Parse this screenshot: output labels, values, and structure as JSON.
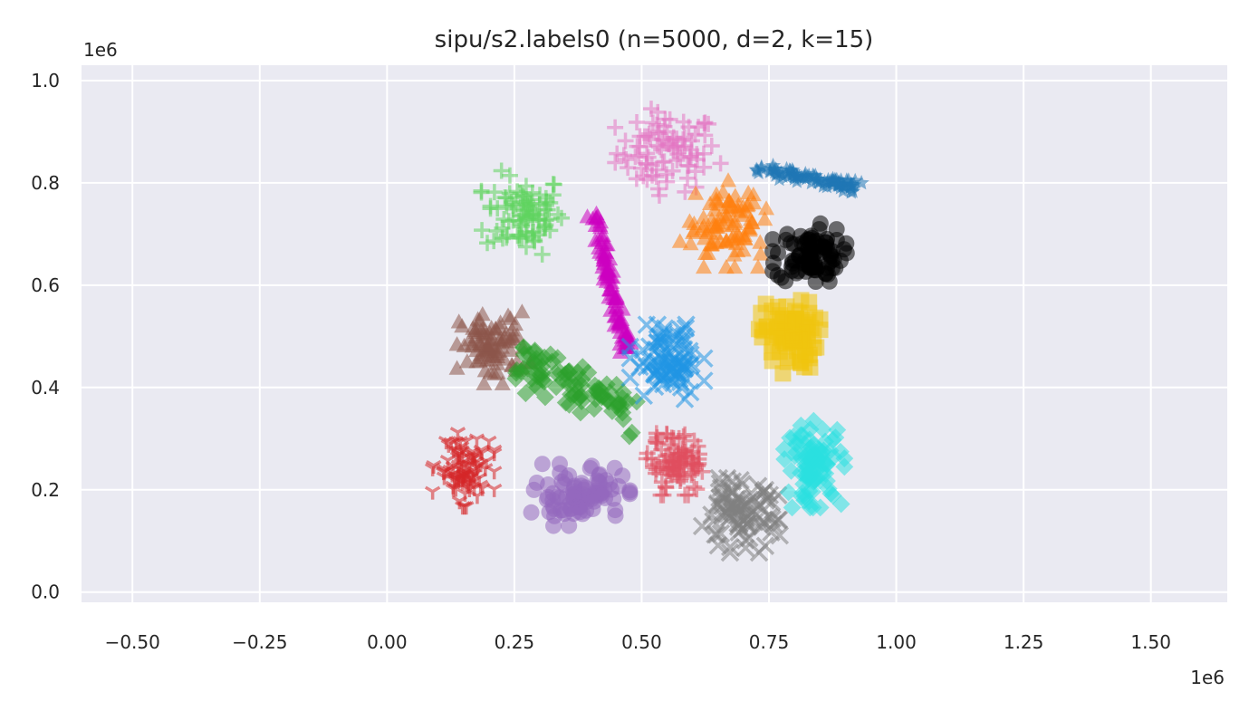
{
  "chart_data": {
    "type": "scatter",
    "title": "sipu/s2.labels0 (n=5000, d=2, k=15)",
    "xlabel": "",
    "ylabel": "",
    "x_offset_label": "1e6",
    "y_offset_label": "1e6",
    "xlim": [
      -0.6,
      1.65
    ],
    "ylim": [
      -0.02,
      1.03
    ],
    "xticks": [
      -0.5,
      -0.25,
      0.0,
      0.25,
      0.5,
      0.75,
      1.0,
      1.25,
      1.5
    ],
    "xtick_labels": [
      "−0.50",
      "−0.25",
      "0.00",
      "0.25",
      "0.50",
      "0.75",
      "1.00",
      "1.25",
      "1.50"
    ],
    "yticks": [
      0.0,
      0.2,
      0.4,
      0.6,
      0.8,
      1.0
    ],
    "ytick_labels": [
      "0.0",
      "0.2",
      "0.4",
      "0.6",
      "0.8",
      "1.0"
    ],
    "grid": true,
    "background": "#eaeaf2",
    "clusters": [
      {
        "marker": "plus",
        "color": "#e377c2",
        "center": [
          0.55,
          0.86
        ],
        "spread": [
          0.09,
          0.07
        ],
        "approx_n": 333
      },
      {
        "marker": "plus",
        "color": "#5fd35f",
        "center": [
          0.27,
          0.74
        ],
        "spread": [
          0.07,
          0.07
        ],
        "approx_n": 333
      },
      {
        "marker": "triangle",
        "color": "#cc00c0",
        "center": [
          0.44,
          0.6
        ],
        "spread": [
          0.02,
          0.1
        ],
        "approx_n": 333
      },
      {
        "marker": "triangle",
        "color": "#ff7f0e",
        "center": [
          0.66,
          0.72
        ],
        "spread": [
          0.07,
          0.07
        ],
        "approx_n": 333
      },
      {
        "marker": "star",
        "color": "#1f77b4",
        "center": [
          0.82,
          0.81
        ],
        "spread": [
          0.07,
          0.02
        ],
        "approx_n": 333
      },
      {
        "marker": "circle",
        "color": "#000000",
        "center": [
          0.83,
          0.66
        ],
        "spread": [
          0.06,
          0.05
        ],
        "approx_n": 333
      },
      {
        "marker": "square",
        "color": "#f1c40f",
        "center": [
          0.79,
          0.5
        ],
        "spread": [
          0.05,
          0.06
        ],
        "approx_n": 333
      },
      {
        "marker": "triangle",
        "color": "#8c564b",
        "center": [
          0.21,
          0.48
        ],
        "spread": [
          0.06,
          0.06
        ],
        "approx_n": 333
      },
      {
        "marker": "diamond",
        "color": "#2ca02c",
        "center": [
          0.38,
          0.4
        ],
        "spread": [
          0.07,
          0.03
        ],
        "approx_n": 333
      },
      {
        "marker": "x",
        "color": "#2196e3",
        "center": [
          0.55,
          0.45
        ],
        "spread": [
          0.06,
          0.06
        ],
        "approx_n": 333
      },
      {
        "marker": "tri",
        "color": "#d62728",
        "center": [
          0.15,
          0.24
        ],
        "spread": [
          0.05,
          0.06
        ],
        "approx_n": 333
      },
      {
        "marker": "circle",
        "color": "#9467bd",
        "center": [
          0.38,
          0.19
        ],
        "spread": [
          0.08,
          0.05
        ],
        "approx_n": 333
      },
      {
        "marker": "plus",
        "color": "#e04f5f",
        "center": [
          0.57,
          0.25
        ],
        "spread": [
          0.05,
          0.05
        ],
        "approx_n": 333
      },
      {
        "marker": "x",
        "color": "#7f7f7f",
        "center": [
          0.69,
          0.15
        ],
        "spread": [
          0.07,
          0.06
        ],
        "approx_n": 333
      },
      {
        "marker": "diamond",
        "color": "#2ae0e0",
        "center": [
          0.84,
          0.25
        ],
        "spread": [
          0.05,
          0.07
        ],
        "approx_n": 333
      }
    ]
  }
}
